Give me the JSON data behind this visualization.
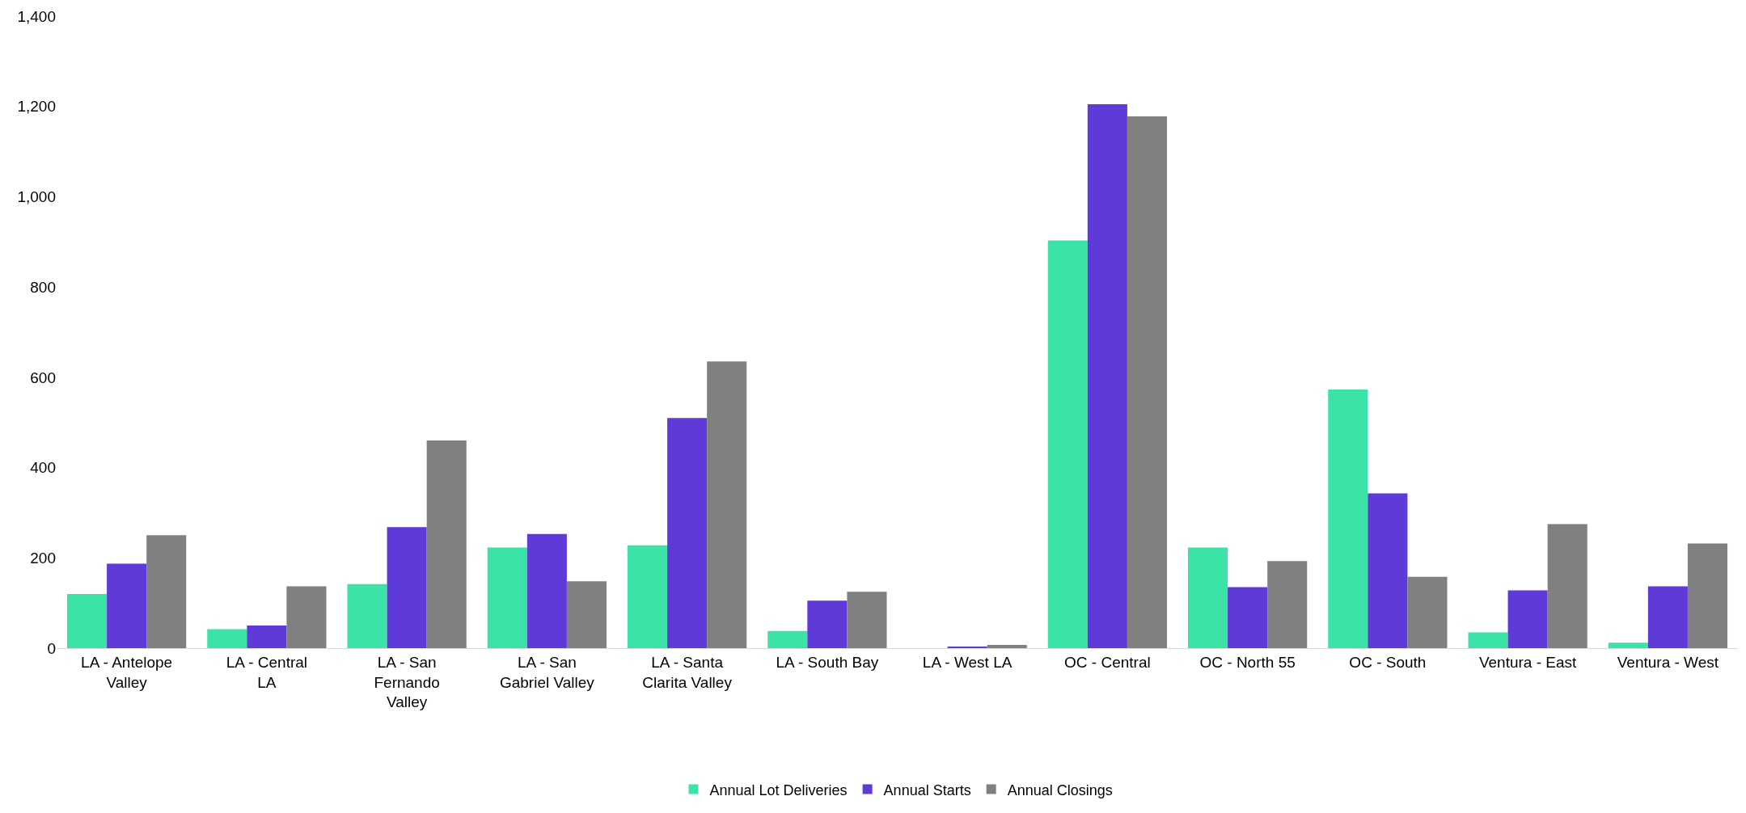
{
  "chart_data": {
    "type": "bar",
    "categories": [
      "LA - Antelope Valley",
      "LA - Central LA",
      "LA - San Fernando Valley",
      "LA - San Gabriel Valley",
      "LA - Santa Clarita Valley",
      "LA - South Bay",
      "LA - West LA",
      "OC - Central",
      "OC - North 55",
      "OC - South",
      "Ventura - East",
      "Ventura - West"
    ],
    "series": [
      {
        "name": "Annual Lot Deliveries",
        "color": "#3ce3a6",
        "values": [
          120,
          42,
          142,
          223,
          228,
          38,
          0,
          903,
          223,
          573,
          35,
          12
        ]
      },
      {
        "name": "Annual Starts",
        "color": "#5f3ad8",
        "values": [
          187,
          50,
          268,
          253,
          510,
          105,
          2,
          1205,
          135,
          343,
          128,
          137
        ]
      },
      {
        "name": "Annual Closings",
        "color": "#808080",
        "values": [
          250,
          137,
          460,
          148,
          635,
          125,
          7,
          1178,
          193,
          158,
          275,
          232
        ]
      }
    ],
    "ylim": [
      0,
      1400
    ],
    "yticks": [
      0,
      {
        "value": 200,
        "label": "200"
      },
      {
        "value": 400,
        "label": "400"
      },
      {
        "value": 600,
        "label": "600"
      },
      {
        "value": 800,
        "label": "800"
      },
      {
        "value": 1000,
        "label": "1,000"
      },
      {
        "value": 1200,
        "label": "1,200"
      },
      {
        "value": 1400,
        "label": "1,400"
      }
    ],
    "grid": false,
    "legend": "bottom"
  }
}
